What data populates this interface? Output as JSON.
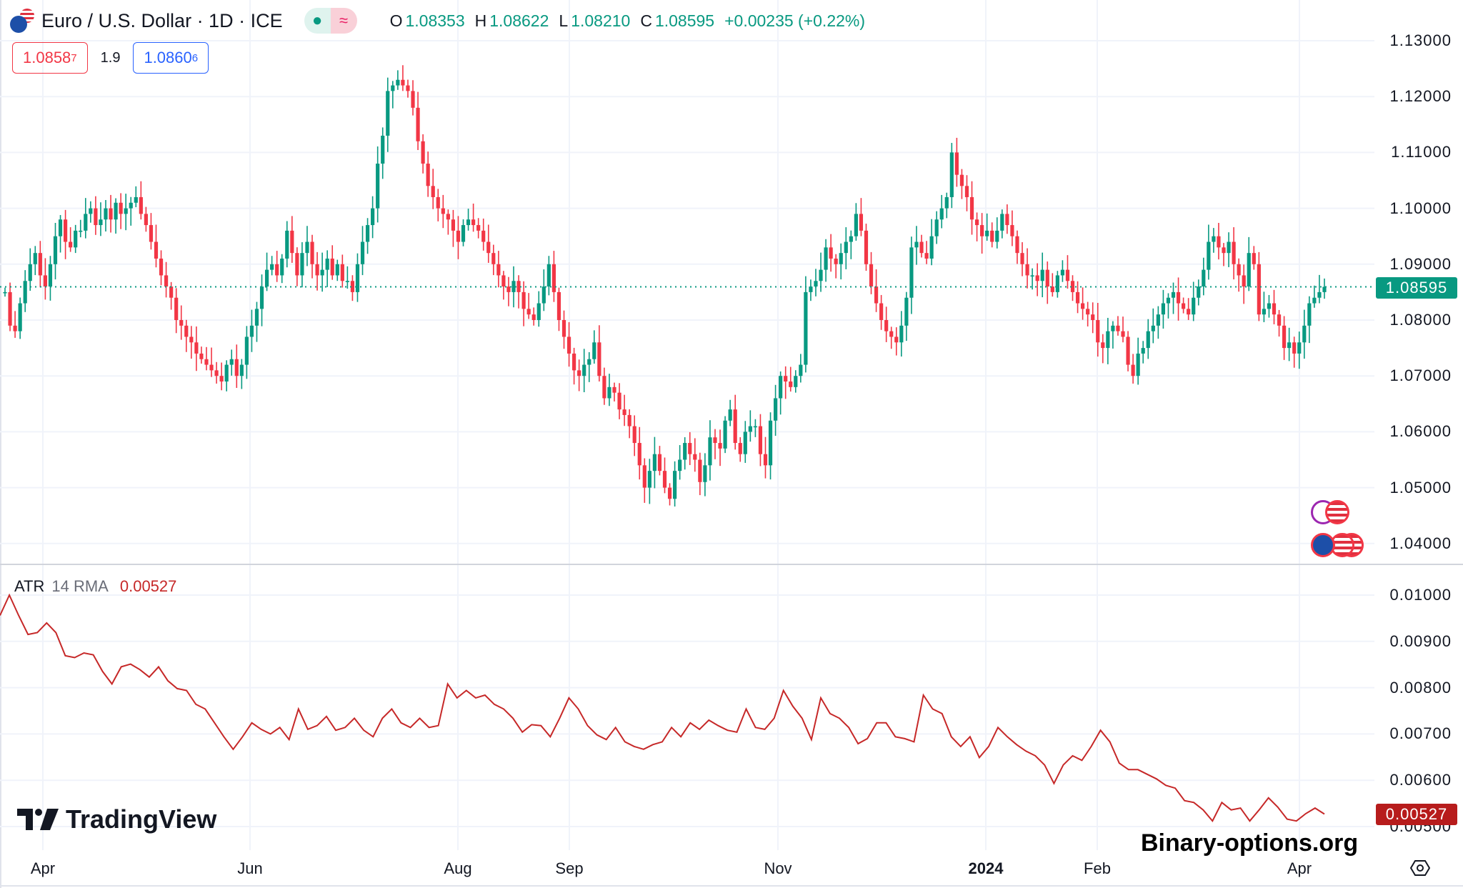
{
  "header": {
    "symbol_title": "Euro / U.S. Dollar · 1D · ICE",
    "status_icons": [
      "market-open-dot-icon",
      "delayed-data-icon"
    ],
    "status_glyph": "≈",
    "ohlc": {
      "o_label": "O",
      "o": "1.08353",
      "h_label": "H",
      "h": "1.08622",
      "l_label": "L",
      "l": "1.08210",
      "c_label": "C",
      "c": "1.08595",
      "change": "+0.00235 (+0.22%)"
    }
  },
  "trade": {
    "sell_main": "1.0858",
    "sell_sup": "7",
    "spread": "1.9",
    "buy_main": "1.0860",
    "buy_sup": "6"
  },
  "indicator": {
    "name": "ATR",
    "params": "14 RMA",
    "value": "0.00527"
  },
  "branding": {
    "logo_text": "TradingView",
    "watermark": "Binary-options.org"
  },
  "colors": {
    "up": "#089981",
    "down": "#f23645",
    "atr_line": "#c62828",
    "atr_badge": "#b71c1c",
    "last_price": "#089981"
  },
  "chart_data": [
    {
      "type": "candlestick",
      "title": "Euro / U.S. Dollar · 1D · ICE",
      "y_ticks": [
        "1.13000",
        "1.12000",
        "1.11000",
        "1.10000",
        "1.09000",
        "1.08000",
        "1.07000",
        "1.06000",
        "1.05000",
        "1.04000"
      ],
      "ylim": [
        1.036,
        1.1372
      ],
      "x_ticks": [
        {
          "label": "Apr",
          "bold": false
        },
        {
          "label": "Jun",
          "bold": false
        },
        {
          "label": "Aug",
          "bold": false
        },
        {
          "label": "Sep",
          "bold": false
        },
        {
          "label": "Nov",
          "bold": false
        },
        {
          "label": "2024",
          "bold": true
        },
        {
          "label": "Feb",
          "bold": false
        },
        {
          "label": "Apr",
          "bold": false
        }
      ],
      "last_price": "1.08595",
      "grid": true,
      "close": [
        1.085,
        1.079,
        1.078,
        1.083,
        1.087,
        1.09,
        1.092,
        1.088,
        1.086,
        1.09,
        1.095,
        1.098,
        1.094,
        1.093,
        1.096,
        1.096,
        1.099,
        1.1,
        1.097,
        1.098,
        1.1,
        1.098,
        1.101,
        1.099,
        1.1,
        1.101,
        1.102,
        1.099,
        1.097,
        1.094,
        1.091,
        1.088,
        1.086,
        1.084,
        1.08,
        1.079,
        1.077,
        1.076,
        1.074,
        1.073,
        1.072,
        1.071,
        1.07,
        1.069,
        1.072,
        1.073,
        1.07,
        1.072,
        1.077,
        1.079,
        1.082,
        1.086,
        1.089,
        1.09,
        1.088,
        1.091,
        1.096,
        1.092,
        1.088,
        1.092,
        1.094,
        1.09,
        1.088,
        1.089,
        1.091,
        1.088,
        1.09,
        1.087,
        1.087,
        1.085,
        1.09,
        1.094,
        1.097,
        1.1,
        1.108,
        1.113,
        1.121,
        1.122,
        1.123,
        1.122,
        1.121,
        1.118,
        1.112,
        1.108,
        1.104,
        1.102,
        1.1,
        1.099,
        1.098,
        1.096,
        1.094,
        1.097,
        1.098,
        1.097,
        1.096,
        1.094,
        1.092,
        1.09,
        1.088,
        1.086,
        1.085,
        1.087,
        1.085,
        1.082,
        1.081,
        1.08,
        1.083,
        1.086,
        1.09,
        1.085,
        1.08,
        1.077,
        1.074,
        1.071,
        1.07,
        1.072,
        1.073,
        1.076,
        1.07,
        1.066,
        1.068,
        1.067,
        1.064,
        1.063,
        1.061,
        1.058,
        1.054,
        1.05,
        1.053,
        1.056,
        1.053,
        1.05,
        1.048,
        1.053,
        1.055,
        1.058,
        1.056,
        1.055,
        1.051,
        1.054,
        1.059,
        1.058,
        1.057,
        1.062,
        1.064,
        1.058,
        1.056,
        1.06,
        1.061,
        1.061,
        1.056,
        1.054,
        1.062,
        1.066,
        1.07,
        1.069,
        1.068,
        1.07,
        1.072,
        1.085,
        1.086,
        1.087,
        1.089,
        1.093,
        1.091,
        1.09,
        1.092,
        1.094,
        1.095,
        1.099,
        1.096,
        1.09,
        1.086,
        1.083,
        1.08,
        1.078,
        1.077,
        1.076,
        1.079,
        1.084,
        1.093,
        1.094,
        1.092,
        1.091,
        1.095,
        1.098,
        1.1,
        1.102,
        1.11,
        1.106,
        1.104,
        1.102,
        1.098,
        1.097,
        1.095,
        1.096,
        1.094,
        1.096,
        1.099,
        1.097,
        1.095,
        1.092,
        1.09,
        1.088,
        1.088,
        1.087,
        1.089,
        1.086,
        1.085,
        1.088,
        1.089,
        1.087,
        1.085,
        1.083,
        1.082,
        1.081,
        1.08,
        1.076,
        1.075,
        1.078,
        1.079,
        1.078,
        1.077,
        1.072,
        1.07,
        1.074,
        1.075,
        1.078,
        1.079,
        1.081,
        1.083,
        1.084,
        1.085,
        1.083,
        1.082,
        1.081,
        1.084,
        1.086,
        1.089,
        1.094,
        1.095,
        1.093,
        1.092,
        1.094,
        1.09,
        1.088,
        1.086,
        1.092,
        1.09,
        1.081,
        1.082,
        1.083,
        1.081,
        1.079,
        1.075,
        1.076,
        1.074,
        1.076,
        1.079,
        1.083,
        1.084,
        1.085,
        1.08595
      ]
    },
    {
      "type": "line",
      "name": "ATR 14 RMA",
      "y_ticks": [
        "0.01000",
        "0.00900",
        "0.00800",
        "0.00700",
        "0.00600",
        "0.00500"
      ],
      "last_value": "0.00527",
      "values": [
        0.00956,
        0.01,
        0.00956,
        0.00915,
        0.00919,
        0.0094,
        0.00919,
        0.00869,
        0.00865,
        0.00875,
        0.00871,
        0.00835,
        0.00808,
        0.00845,
        0.00851,
        0.00839,
        0.00823,
        0.00845,
        0.00815,
        0.00798,
        0.00794,
        0.00764,
        0.00754,
        0.00724,
        0.00694,
        0.00667,
        0.00694,
        0.00724,
        0.0071,
        0.007,
        0.00714,
        0.00688,
        0.00754,
        0.0071,
        0.00718,
        0.00738,
        0.00708,
        0.00714,
        0.00734,
        0.00708,
        0.00694,
        0.00734,
        0.00754,
        0.00724,
        0.00714,
        0.00734,
        0.00714,
        0.00718,
        0.00808,
        0.00778,
        0.00794,
        0.00778,
        0.00784,
        0.00764,
        0.00754,
        0.00734,
        0.00704,
        0.0072,
        0.00718,
        0.00694,
        0.00734,
        0.00778,
        0.00754,
        0.00718,
        0.00698,
        0.00688,
        0.00714,
        0.00683,
        0.00673,
        0.00667,
        0.00677,
        0.00683,
        0.00714,
        0.00694,
        0.00724,
        0.0071,
        0.0073,
        0.00718,
        0.00708,
        0.00704,
        0.00754,
        0.00714,
        0.0071,
        0.00734,
        0.00794,
        0.0076,
        0.00734,
        0.00688,
        0.00778,
        0.00744,
        0.00734,
        0.00714,
        0.00679,
        0.0069,
        0.00724,
        0.00724,
        0.00694,
        0.0069,
        0.00683,
        0.00784,
        0.00754,
        0.00744,
        0.00694,
        0.00673,
        0.00694,
        0.00649,
        0.00673,
        0.00714,
        0.00694,
        0.00677,
        0.00663,
        0.00653,
        0.00633,
        0.00593,
        0.00633,
        0.00653,
        0.00643,
        0.00673,
        0.00708,
        0.00683,
        0.00637,
        0.00623,
        0.00623,
        0.00613,
        0.00603,
        0.00589,
        0.00583,
        0.00556,
        0.00552,
        0.00536,
        0.00512,
        0.00552,
        0.00536,
        0.0054,
        0.00512,
        0.00536,
        0.00562,
        0.00542,
        0.00516,
        0.00512,
        0.00528,
        0.0054,
        0.00527
      ]
    }
  ]
}
